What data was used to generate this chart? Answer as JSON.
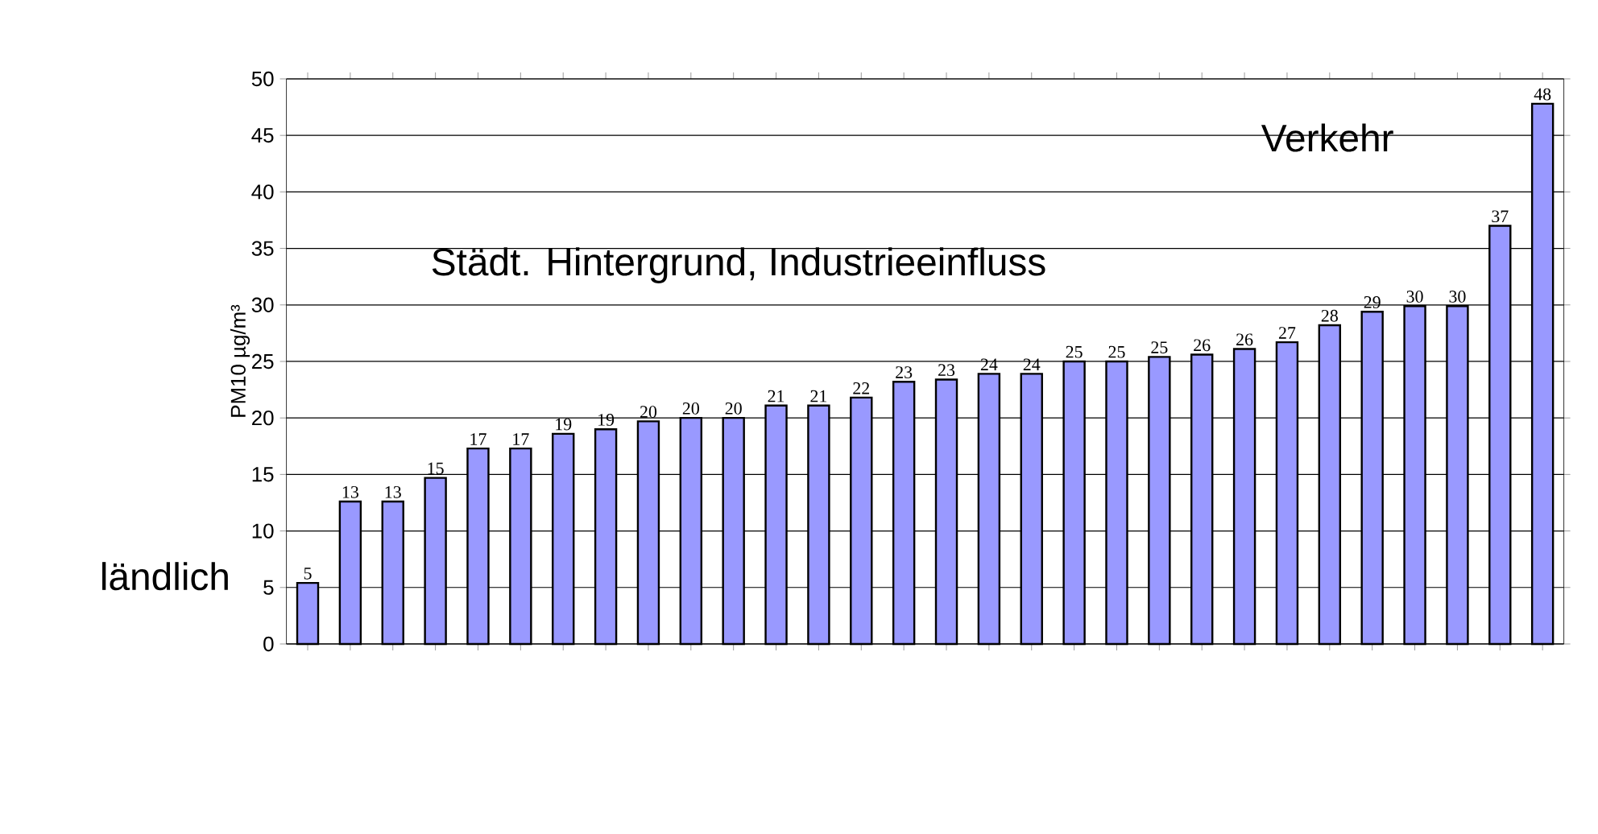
{
  "chart_data": {
    "type": "bar",
    "ylabel": "PM10 µg/m³",
    "categories": [
      null,
      null,
      null,
      null,
      null,
      null,
      null,
      null,
      null,
      null,
      null,
      null,
      null,
      null,
      null,
      null,
      null,
      null,
      null,
      null,
      null,
      null,
      null,
      null,
      null,
      null,
      null,
      null,
      null,
      null
    ],
    "values": [
      5.4,
      12.6,
      12.6,
      14.7,
      17.3,
      17.3,
      18.6,
      19.0,
      19.7,
      20.0,
      20.0,
      21.1,
      21.1,
      21.8,
      23.2,
      23.4,
      23.9,
      23.9,
      25.0,
      25.0,
      25.4,
      25.6,
      26.1,
      26.7,
      28.2,
      29.4,
      29.9,
      29.9,
      37.0,
      47.8
    ],
    "value_labels": [
      "5",
      "13",
      "13",
      "15",
      "17",
      "17",
      "19",
      "19",
      "20",
      "20",
      "20",
      "21",
      "21",
      "22",
      "23",
      "23",
      "24",
      "24",
      "25",
      "25",
      "25",
      "26",
      "26",
      "27",
      "28",
      "29",
      "30",
      "30",
      "37",
      "48"
    ],
    "color": "#9999ff",
    "ylim": [
      0,
      50
    ],
    "yticks": [
      0,
      5,
      10,
      15,
      20,
      25,
      30,
      35,
      40,
      45,
      50
    ],
    "grid": "y",
    "annotations": [
      "ländlich",
      "Städt. Hintergrund, Industrieeinfluss",
      "Verkehr"
    ]
  }
}
